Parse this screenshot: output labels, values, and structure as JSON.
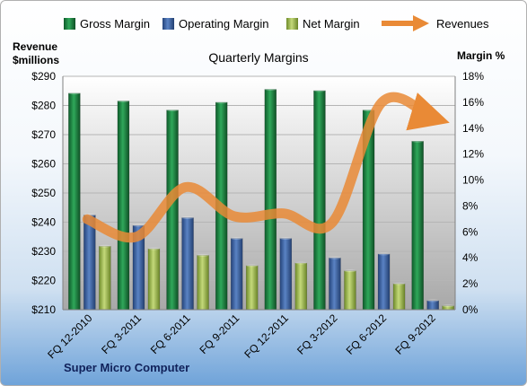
{
  "chart_data": {
    "type": "bar",
    "title": "Quarterly Margins",
    "left_axis_title": [
      "Revenue",
      "$millions"
    ],
    "right_axis_title": "Margin %",
    "footer": "Super Micro Computer",
    "categories": [
      "FQ 12-2010",
      "FQ 3-2011",
      "FQ 6-2011",
      "FQ 9-2011",
      "FQ 12-2011",
      "FQ 3-2012",
      "FQ 6-2012",
      "FQ 9-2012"
    ],
    "left_axis": {
      "min": 210,
      "max": 290,
      "step": 10,
      "prefix": "$"
    },
    "right_axis": {
      "min": 0,
      "max": 18,
      "step": 2,
      "suffix": "%"
    },
    "series": [
      {
        "name": "Gross Margin",
        "axis": "right",
        "color": "#1a7a3e",
        "values": [
          16.7,
          16.1,
          15.4,
          16.0,
          17.0,
          16.9,
          15.4,
          13.0
        ]
      },
      {
        "name": "Operating Margin",
        "axis": "right",
        "color": "#3a5f9e",
        "values": [
          7.3,
          6.5,
          7.1,
          5.5,
          5.5,
          4.0,
          4.3,
          0.7
        ]
      },
      {
        "name": "Net Margin",
        "axis": "right",
        "color": "#9ab84a",
        "values": [
          4.9,
          4.7,
          4.2,
          3.4,
          3.6,
          3.0,
          2.0,
          0.3
        ]
      },
      {
        "name": "Revenues",
        "axis": "left",
        "type": "line",
        "color": "#e98a36",
        "values": [
          241,
          235,
          252,
          242,
          243,
          240,
          281,
          276
        ]
      }
    ],
    "grid": true,
    "legend_position": "top"
  }
}
